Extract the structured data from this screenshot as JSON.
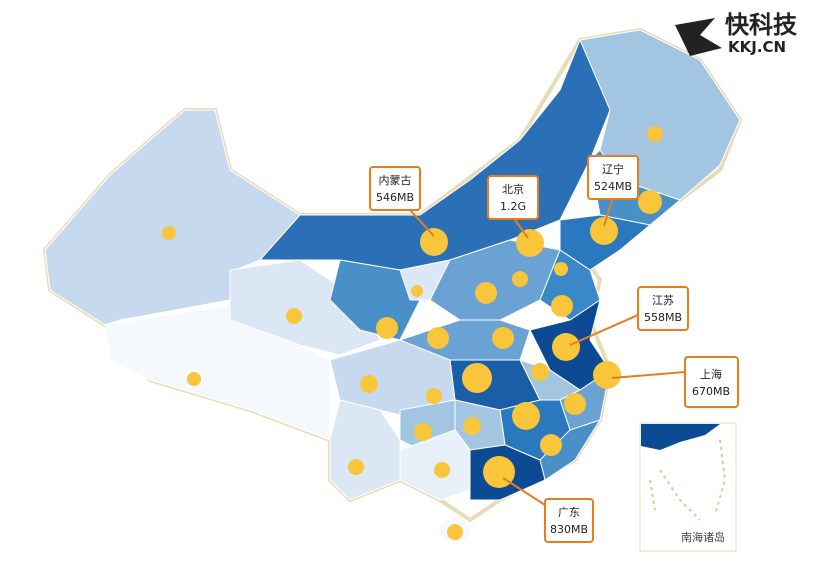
{
  "logo": {
    "name": "快科技",
    "url": "KKJ.CN"
  },
  "callouts": [
    {
      "region": "内蒙古",
      "value": "546MB"
    },
    {
      "region": "北京",
      "value": "1.2G"
    },
    {
      "region": "辽宁",
      "value": "524MB"
    },
    {
      "region": "江苏",
      "value": "558MB"
    },
    {
      "region": "上海",
      "value": "670MB"
    },
    {
      "region": "广东",
      "value": "830MB"
    }
  ],
  "inset_label": "南海诸岛"
}
